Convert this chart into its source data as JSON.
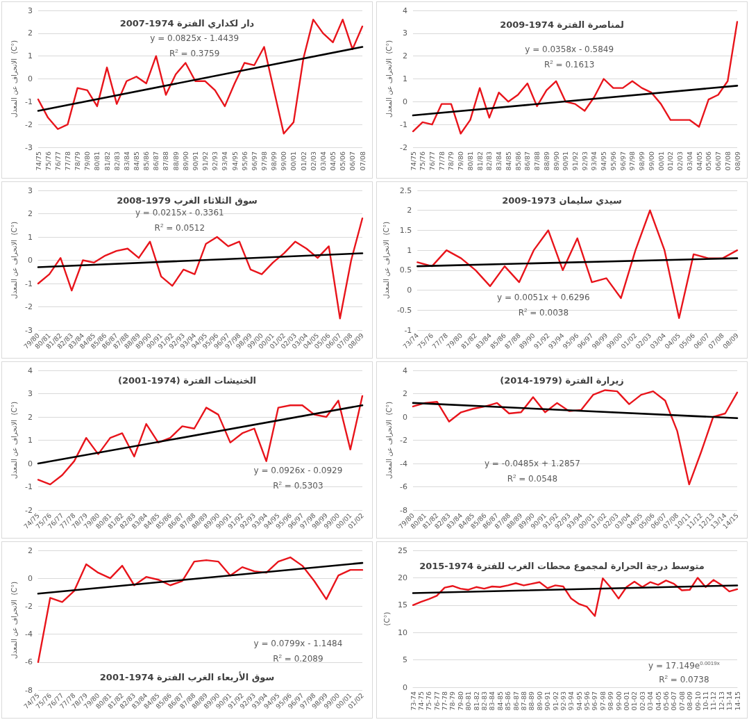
{
  "chart_data": [
    {
      "type": "line",
      "title": "دار لكداري الفترة 1974-2007",
      "ylabel": "الانحراف عن المعدل  (C°)",
      "categories": [
        "74/75",
        "75/76",
        "76/77",
        "77/78",
        "78/79",
        "79/80",
        "80/81",
        "81/82",
        "82/83",
        "83/84",
        "84/85",
        "85/86",
        "86/87",
        "87/88",
        "88/89",
        "89/90",
        "90/91",
        "91/92",
        "92/93",
        "93/94",
        "94/95",
        "95/96",
        "96/97",
        "97/98",
        "98/99",
        "99/00",
        "00/01",
        "01/02",
        "02/03",
        "03/04",
        "04/05",
        "05/06",
        "06/07",
        "07/08"
      ],
      "series": [
        {
          "color": "#e8141b",
          "values": [
            -0.9,
            -1.7,
            -2.2,
            -2.0,
            -0.4,
            -0.5,
            -1.2,
            0.5,
            -1.1,
            -0.1,
            0.1,
            -0.2,
            1.0,
            -0.7,
            0.2,
            0.7,
            -0.1,
            -0.1,
            -0.5,
            -1.2,
            -0.2,
            0.7,
            0.6,
            1.4,
            -0.5,
            -2.4,
            -1.9,
            0.9,
            2.6,
            2.0,
            1.6,
            2.6,
            1.3,
            2.3
          ]
        },
        {
          "color": "#000000",
          "x": [
            "74/75",
            "07/08"
          ],
          "values": [
            -1.4,
            1.4
          ]
        }
      ],
      "ylim": [
        -3,
        3
      ],
      "yticks": [
        -3,
        -2,
        -1,
        0,
        1,
        2,
        3
      ],
      "grid": "y",
      "marker": "none",
      "line_style": "solid",
      "annotations": [
        "y = 0.0825x - 1.4439",
        "R$^{2}$ = 0.3759"
      ]
    },
    {
      "type": "line",
      "title": "لمناصرة الفترة 1974-2009",
      "ylabel": "الانحراف عن المعدل  (C°)",
      "categories": [
        "74/75",
        "75/76",
        "76/77",
        "77/78",
        "78/79",
        "79/80",
        "80/81",
        "81/82",
        "82/83",
        "83/84",
        "84/85",
        "85/86",
        "86/87",
        "87/88",
        "88/89",
        "89/90",
        "90/91",
        "91/92",
        "92/93",
        "93/94",
        "94/95",
        "95/96",
        "96/97",
        "97/98",
        "98/99",
        "99/00",
        "00/01",
        "01/02",
        "02/03",
        "03/04",
        "04/05",
        "05/06",
        "06/07",
        "07/08",
        "08/09"
      ],
      "series": [
        {
          "color": "#e8141b",
          "values": [
            -1.3,
            -0.9,
            -1.0,
            -0.1,
            -0.1,
            -1.4,
            -0.8,
            0.6,
            -0.7,
            0.4,
            0.0,
            0.3,
            0.8,
            -0.2,
            0.5,
            0.9,
            0.0,
            -0.1,
            -0.4,
            0.2,
            1.0,
            0.6,
            0.6,
            0.9,
            0.6,
            0.4,
            -0.1,
            -0.8,
            -0.8,
            -0.8,
            -1.1,
            0.1,
            0.3,
            0.9,
            3.5
          ]
        },
        {
          "color": "#000000",
          "x": [
            "74/75",
            "08/09"
          ],
          "values": [
            -0.6,
            0.7
          ]
        }
      ],
      "ylim": [
        -2,
        4
      ],
      "yticks": [
        -2,
        -1,
        0,
        1,
        2,
        3,
        4
      ],
      "grid": "y",
      "marker": "none",
      "line_style": "solid",
      "annotations": [
        "y = 0.0358x - 0.5849",
        "R$^{2}$ = 0.1613"
      ]
    },
    {
      "type": "line",
      "title": "سوق الثلاثاء الغرب 1979-2008",
      "ylabel": "الانحراف عن المعدل  (C°)",
      "categories": [
        "79/80",
        "80/81",
        "81/82",
        "82/83",
        "83/84",
        "84/85",
        "85/86",
        "86/87",
        "87/88",
        "88/89",
        "89/90",
        "90/91",
        "91/92",
        "92/93",
        "93/94",
        "94/95",
        "95/96",
        "96/97",
        "97/98",
        "98/99",
        "99/00",
        "00/01",
        "01/02",
        "02/03",
        "03/04",
        "04/05",
        "05/06",
        "06/07",
        "07/08",
        "08/09"
      ],
      "series": [
        {
          "color": "#e8141b",
          "values": [
            -1.0,
            -0.6,
            0.1,
            -1.3,
            0.0,
            -0.1,
            0.2,
            0.4,
            0.5,
            0.1,
            0.8,
            -0.7,
            -1.1,
            -0.4,
            -0.6,
            0.7,
            1.0,
            0.6,
            0.8,
            -0.4,
            -0.6,
            -0.1,
            0.3,
            0.8,
            0.5,
            0.1,
            0.6,
            -2.5,
            0.0,
            1.8
          ]
        },
        {
          "color": "#000000",
          "x": [
            "79/80",
            "08/09"
          ],
          "values": [
            -0.3,
            0.3
          ]
        }
      ],
      "ylim": [
        -3,
        3
      ],
      "yticks": [
        -3,
        -2,
        -1,
        0,
        1,
        2,
        3
      ],
      "grid": "y",
      "marker": "none",
      "line_style": "solid",
      "annotations": [
        "y = 0.0215x - 0.3361",
        "R$^{2}$ = 0.0512"
      ]
    },
    {
      "type": "line",
      "title": "سيدي سليمان 1973-2009",
      "ylabel": "الانحراف عن المعدل  (C°)",
      "categories": [
        "73/74",
        "75/76",
        "77/78",
        "79/80",
        "81/82",
        "83/84",
        "85/86",
        "87/88",
        "89/90",
        "91/92",
        "93/94",
        "95/96",
        "96/97",
        "98/99",
        "99/00",
        "01/02",
        "02/03",
        "03/04",
        "04/05",
        "05/06",
        "06/07",
        "07/08",
        "08/09"
      ],
      "series": [
        {
          "color": "#e8141b",
          "values": [
            0.7,
            0.6,
            1.0,
            0.8,
            0.5,
            0.1,
            0.6,
            0.2,
            1.0,
            1.5,
            0.5,
            1.3,
            0.2,
            0.3,
            -0.2,
            1.0,
            2.0,
            1.0,
            -0.7,
            0.9,
            0.8,
            0.8,
            1.0
          ]
        },
        {
          "color": "#000000",
          "x": [
            "73/74",
            "08/09"
          ],
          "values": [
            0.6,
            0.8
          ]
        }
      ],
      "ylim": [
        -1,
        2.5
      ],
      "yticks": [
        -1,
        -0.5,
        0,
        0.5,
        1,
        1.5,
        2,
        2.5
      ],
      "grid": "y",
      "marker": "none",
      "line_style": "solid",
      "annotations": [
        "y = 0.0051x + 0.6296",
        "R$^{2}$ = 0.0038"
      ]
    },
    {
      "type": "line",
      "title": "الخنيشات الفترة (1974-2001)",
      "ylabel": "الانحراف عن المعدل  (C°)",
      "categories": [
        "74/75",
        "75/76",
        "76/77",
        "77/78",
        "78/79",
        "79/80",
        "80/81",
        "81/82",
        "82/83",
        "83/84",
        "84/85",
        "85/86",
        "86/87",
        "87/88",
        "88/89",
        "89/90",
        "90/91",
        "91/92",
        "92/93",
        "93/94",
        "94/95",
        "95/96",
        "96/97",
        "97/98",
        "98/99",
        "99/00",
        "00/01",
        "01/02"
      ],
      "series": [
        {
          "color": "#e8141b",
          "values": [
            -0.7,
            -0.9,
            -0.5,
            0.1,
            1.1,
            0.4,
            1.1,
            1.3,
            0.3,
            1.7,
            0.9,
            1.1,
            1.6,
            1.5,
            2.4,
            2.1,
            0.9,
            1.3,
            1.5,
            0.1,
            2.4,
            2.5,
            2.5,
            2.1,
            2.0,
            2.7,
            0.6,
            2.9
          ]
        },
        {
          "color": "#000000",
          "x": [
            "74/75",
            "01/02"
          ],
          "values": [
            0.0,
            2.5
          ]
        }
      ],
      "ylim": [
        -2,
        4
      ],
      "yticks": [
        -2,
        -1,
        0,
        1,
        2,
        3,
        4
      ],
      "grid": "y",
      "marker": "none",
      "line_style": "solid",
      "annotations": [
        "y = 0.0926x - 0.0929",
        "R$^{2}$ = 0.5303"
      ]
    },
    {
      "type": "line",
      "title": "زيرارة الفترة (1979-2014)",
      "ylabel": "الانحراف عن المعدل  (C°)",
      "categories": [
        "79/80",
        "80/81",
        "81/82",
        "82/83",
        "83/84",
        "84/85",
        "85/86",
        "86/87",
        "87/88",
        "88/89",
        "89/90",
        "90/91",
        "91/92",
        "92/93",
        "93/94",
        "00/01",
        "01/02",
        "02/03",
        "03/04",
        "04/05",
        "05/06",
        "06/07",
        "07/08",
        "10/11",
        "11/12",
        "12/13",
        "13/14",
        "14/15"
      ],
      "series": [
        {
          "color": "#e8141b",
          "values": [
            0.9,
            1.2,
            1.3,
            -0.4,
            0.4,
            0.7,
            0.9,
            1.2,
            0.3,
            0.4,
            1.7,
            0.4,
            1.2,
            0.5,
            0.6,
            1.9,
            2.3,
            2.2,
            1.1,
            1.9,
            2.2,
            1.4,
            -1.2,
            -5.8,
            -3.0,
            0.0,
            0.3,
            2.1
          ]
        },
        {
          "color": "#000000",
          "x": [
            "79/80",
            "14/15"
          ],
          "values": [
            1.2,
            -0.1
          ]
        }
      ],
      "ylim": [
        -8,
        4
      ],
      "yticks": [
        -8,
        -6,
        -4,
        -2,
        0,
        2,
        4
      ],
      "grid": "y",
      "marker": "none",
      "line_style": "solid",
      "annotations": [
        "y = -0.0485x + 1.2857",
        "R$^{2}$ = 0.0548"
      ]
    },
    {
      "type": "line",
      "title": "سوق الأربعاء الغرب الفترة 1974-2001",
      "ylabel": "الانحراف عن المعدل  (C°)",
      "categories": [
        "74/75",
        "75/76",
        "76/77",
        "77/78",
        "78/79",
        "79/80",
        "80/81",
        "81/82",
        "82/83",
        "83/84",
        "84/85",
        "85/86",
        "86/87",
        "87/88",
        "88/89",
        "89/90",
        "90/91",
        "91/92",
        "92/93",
        "93/94",
        "94/95",
        "95/96",
        "96/97",
        "97/98",
        "98/99",
        "99/00",
        "00/01",
        "01/02"
      ],
      "series": [
        {
          "color": "#e8141b",
          "values": [
            -6.0,
            -1.4,
            -1.7,
            -0.9,
            1.0,
            0.4,
            0.0,
            0.9,
            -0.5,
            0.1,
            -0.1,
            -0.5,
            -0.2,
            1.2,
            1.3,
            1.2,
            0.2,
            0.8,
            0.5,
            0.4,
            1.2,
            1.5,
            0.9,
            -0.2,
            -1.5,
            0.2,
            0.6,
            0.6
          ]
        },
        {
          "color": "#000000",
          "x": [
            "74/75",
            "01/02"
          ],
          "values": [
            -1.1,
            1.1
          ]
        }
      ],
      "ylim": [
        -8,
        2
      ],
      "yticks": [
        -8,
        -6,
        -4,
        -2,
        0,
        2
      ],
      "grid": "y",
      "marker": "none",
      "line_style": "solid",
      "annotations": [
        "y = 0.0799x - 1.1484",
        "R$^{2}$ = 0.2089"
      ]
    },
    {
      "type": "line",
      "title": "متوسط درجة الحرارة لمجموع محطات الغرب للفترة 1974-2015",
      "ylabel": "(C°)",
      "categories": [
        "73-74",
        "74-75",
        "75-76",
        "76-77",
        "77-78",
        "78-79",
        "79-80",
        "80-81",
        "81-82",
        "82-83",
        "83-84",
        "84-85",
        "85-86",
        "86-87",
        "87-88",
        "88-89",
        "89-90",
        "90-91",
        "91-92",
        "92-93",
        "93-94",
        "94-95",
        "95-96",
        "96-97",
        "97-98",
        "98-99",
        "99-00",
        "00-01",
        "01-02",
        "02-03",
        "03-04",
        "04-05",
        "05-06",
        "06-07",
        "07-08",
        "08-09",
        "09-10",
        "10-11",
        "11-12",
        "12-13",
        "13-14",
        "14-15"
      ],
      "series": [
        {
          "color": "#e8141b",
          "values": [
            15.0,
            15.6,
            16.1,
            16.7,
            18.2,
            18.5,
            18.0,
            17.8,
            18.3,
            18.0,
            18.4,
            18.3,
            18.6,
            19.0,
            18.6,
            18.9,
            19.2,
            18.1,
            18.6,
            18.4,
            16.2,
            15.2,
            14.7,
            13.0,
            19.9,
            18.2,
            16.2,
            18.3,
            19.3,
            18.3,
            19.2,
            18.7,
            19.5,
            18.9,
            17.7,
            17.8,
            20.0,
            18.3,
            19.6,
            18.7,
            17.5,
            17.9
          ]
        },
        {
          "color": "#000000",
          "x": [
            "73-74",
            "14-15"
          ],
          "values": [
            17.2,
            18.6
          ]
        }
      ],
      "ylim": [
        0,
        25
      ],
      "yticks": [
        0,
        5,
        10,
        15,
        20,
        25
      ],
      "grid": "y",
      "marker": "none",
      "line_style": "solid",
      "annotations": [
        "y = 17.149e$^{0.0019x}$",
        "R$^{2}$ = 0.0738"
      ]
    }
  ]
}
